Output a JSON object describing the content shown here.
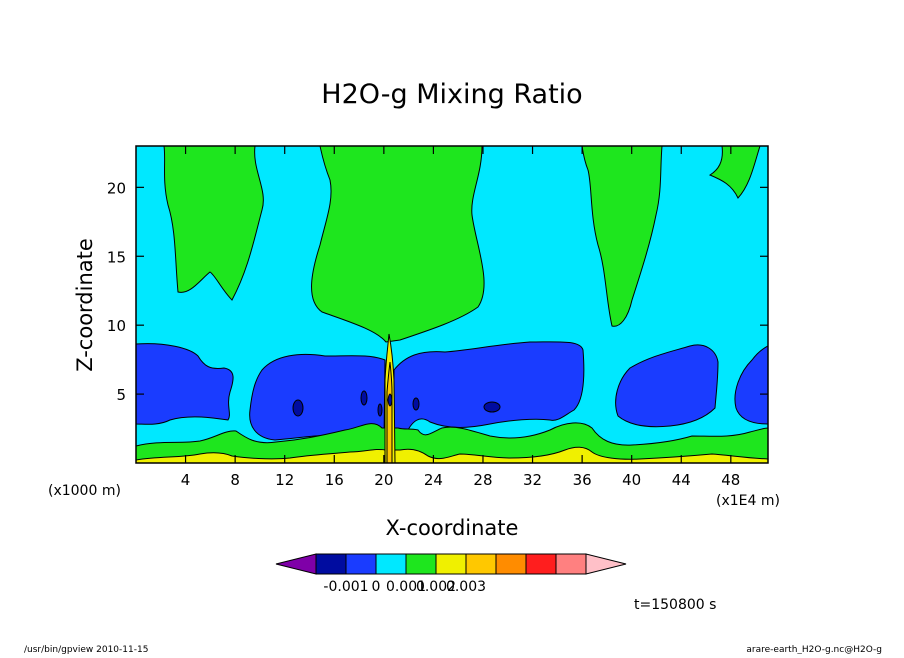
{
  "chart_data": {
    "type": "heatmap",
    "title": "H2O-g Mixing Ratio",
    "xlabel": "X-coordinate",
    "ylabel": "Z-coordinate",
    "x_unit_left": "(x1000 m)",
    "x_unit_right": "(x1E4 m)",
    "xlim": [
      0,
      51
    ],
    "ylim": [
      0,
      23
    ],
    "x_ticks": [
      4,
      8,
      12,
      16,
      20,
      24,
      28,
      32,
      36,
      40,
      44,
      48
    ],
    "y_ticks": [
      5,
      10,
      15,
      20
    ],
    "colorbar": {
      "colors": [
        "#7f00a8",
        "#000ca0",
        "#1a3cff",
        "#00e8ff",
        "#1ee61e",
        "#f0f000",
        "#ffc800",
        "#ff8c00",
        "#ff1e1e",
        "#ff8080",
        "#ffc0c8"
      ],
      "tick_labels": [
        "-0.001",
        "0",
        "0.001",
        "0.002",
        "0.003"
      ]
    },
    "palette": {
      "cyan": "#00e8ff",
      "blue": "#1a3cff",
      "dark_blue": "#000ca0",
      "green": "#1ee61e",
      "yellow": "#f0f000",
      "orange": "#ffc800"
    },
    "time_label": "t=150800 s"
  },
  "footer": {
    "left": "/usr/bin/gpview  2010-11-15",
    "right": "arare-earth_H2O-g.nc@H2O-g"
  }
}
